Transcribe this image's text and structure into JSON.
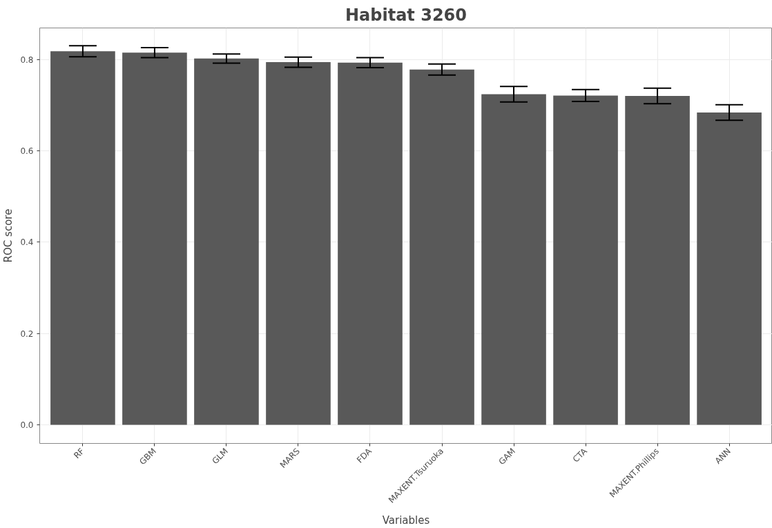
{
  "chart_data": {
    "type": "bar",
    "title": "Habitat 3260",
    "xlabel": "Variables",
    "ylabel": "ROC score",
    "categories": [
      "RF",
      "GBM",
      "GLM",
      "MARS",
      "FDA",
      "MAXENT.Tsuruoka",
      "GAM",
      "CTA",
      "MAXENT.Phillips",
      "ANN"
    ],
    "values": [
      0.818,
      0.815,
      0.802,
      0.794,
      0.793,
      0.778,
      0.724,
      0.721,
      0.72,
      0.684
    ],
    "errors": [
      0.012,
      0.011,
      0.01,
      0.011,
      0.011,
      0.012,
      0.017,
      0.013,
      0.017,
      0.017
    ],
    "color": "#595959",
    "ylim": [
      -0.041,
      0.869
    ],
    "yticks": [
      {
        "value": 0,
        "label": "0.0"
      },
      0.2,
      0.4,
      0.6,
      0.8
    ],
    "grid": true
  }
}
